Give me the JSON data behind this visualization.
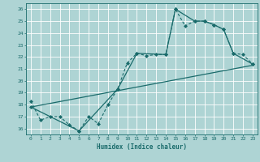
{
  "title": "",
  "xlabel": "Humidex (Indice chaleur)",
  "ylabel": "",
  "background_color": "#aed4d4",
  "grid_color": "#ffffff",
  "line_color": "#1a6b6b",
  "xlim": [
    -0.5,
    23.5
  ],
  "ylim": [
    15.5,
    26.5
  ],
  "xticks": [
    0,
    1,
    2,
    3,
    4,
    5,
    6,
    7,
    8,
    9,
    10,
    11,
    12,
    13,
    14,
    15,
    16,
    17,
    18,
    19,
    20,
    21,
    22,
    23
  ],
  "yticks": [
    16,
    17,
    18,
    19,
    20,
    21,
    22,
    23,
    24,
    25,
    26
  ],
  "series1_x": [
    0,
    1,
    2,
    3,
    4,
    5,
    6,
    7,
    8,
    9,
    10,
    11,
    12,
    13,
    14,
    15,
    16,
    17,
    18,
    19,
    20,
    21,
    22,
    23
  ],
  "series1_y": [
    18.3,
    16.7,
    17.0,
    17.0,
    16.3,
    15.8,
    17.0,
    16.4,
    18.0,
    19.3,
    21.5,
    22.3,
    22.1,
    22.2,
    22.2,
    26.0,
    24.6,
    25.0,
    25.0,
    24.7,
    24.3,
    22.3,
    22.2,
    21.4
  ],
  "series2_x": [
    0,
    23
  ],
  "series2_y": [
    17.8,
    21.3
  ],
  "series3_x": [
    0,
    5,
    9,
    11,
    14,
    15,
    17,
    18,
    19,
    20,
    21,
    23
  ],
  "series3_y": [
    17.8,
    15.8,
    19.3,
    22.3,
    22.2,
    26.0,
    25.0,
    25.0,
    24.7,
    24.3,
    22.3,
    21.4
  ]
}
